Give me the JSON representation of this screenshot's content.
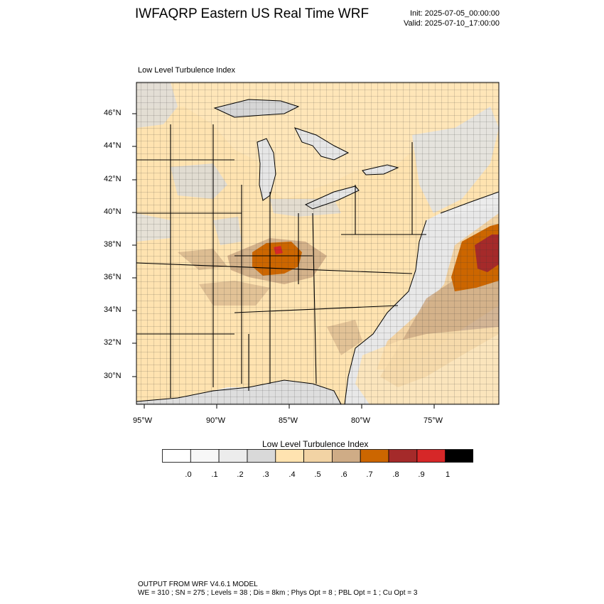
{
  "title": "IWFAQRP Eastern US Real Time WRF",
  "init": "Init: 2025-07-05_00:00:00",
  "valid": "Valid: 2025-07-10_17:00:00",
  "field_title": "Low Level Turbulence Index",
  "lat_labels": [
    "46°N",
    "44°N",
    "42°N",
    "40°N",
    "38°N",
    "36°N",
    "34°N",
    "32°N",
    "30°N"
  ],
  "lon_labels": [
    "95°W",
    "90°W",
    "85°W",
    "80°W",
    "75°W"
  ],
  "colorbar": {
    "title": "Low Level Turbulence Index",
    "labels": [
      ".0",
      ".1",
      ".2",
      ".3",
      ".4",
      ".5",
      ".6",
      ".7",
      ".8",
      ".9",
      "1"
    ],
    "colors": [
      "#ffffff",
      "#f7f7f7",
      "#ececec",
      "#d9d9d9",
      "#ffe3b0",
      "#f2d3a4",
      "#cfac86",
      "#cc6600",
      "#a52a2a",
      "#d62728",
      "#000000"
    ]
  },
  "footer": {
    "line1": "OUTPUT FROM WRF V4.6.1 MODEL",
    "line2": "WE = 310 ; SN = 275 ; Levels = 38 ; Dis = 8km ; Phys Opt = 8 ; PBL Opt = 1 ; Cu Opt = 3"
  }
}
